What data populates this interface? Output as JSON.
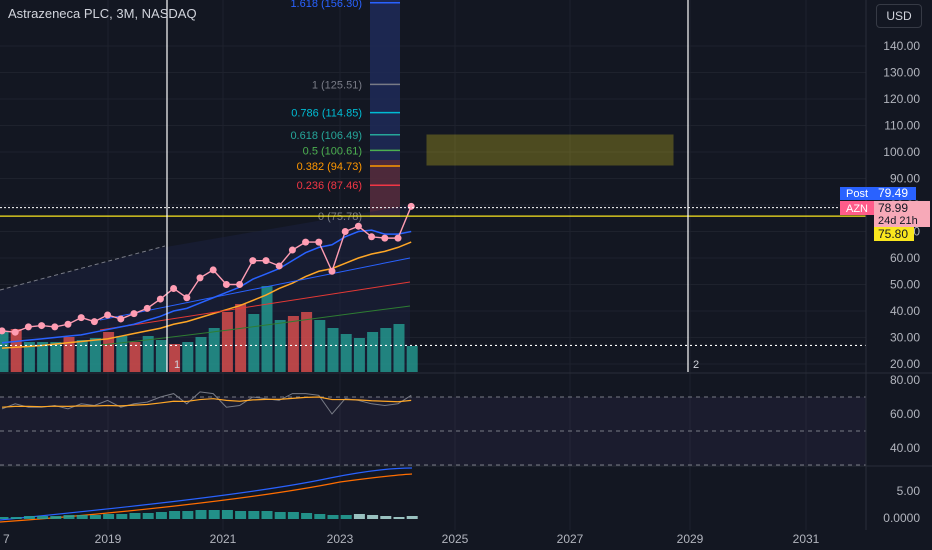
{
  "header": {
    "symbol_title": "Astrazeneca PLC, 3M, NASDAQ",
    "currency": "USD"
  },
  "colors": {
    "background": "#131722",
    "grid": "#1e222d",
    "axis_text": "#b2b5be",
    "up_volume": "#26a69a",
    "down_volume": "#ef5350",
    "price_line": "#ff9db3",
    "ma_orange": "#ffa726",
    "ma_blue": "#2962ff",
    "ma_red": "#e53935",
    "ma_green": "#2e7d32",
    "hline_yellow": "#f9e61e",
    "fib_blue": "#2962ff",
    "rsi_line": "#787b86",
    "rsi_signal": "#ffa726",
    "post_label": "#2962ff",
    "azn_label": "#f7a9b8",
    "yellow_label": "#f9e61e"
  },
  "chart_data": [
    {
      "type": "line",
      "name": "price",
      "x": [
        "2016-07",
        "2016-10",
        "2017-01",
        "2017-04",
        "2017-07",
        "2017-10",
        "2018-01",
        "2018-04",
        "2018-07",
        "2018-10",
        "2019-01",
        "2019-04",
        "2019-07",
        "2019-10",
        "2020-01",
        "2020-04",
        "2020-07",
        "2020-10",
        "2021-01",
        "2021-04",
        "2021-07",
        "2021-10",
        "2022-01",
        "2022-04",
        "2022-07",
        "2022-10",
        "2023-01",
        "2023-04",
        "2023-07",
        "2023-10",
        "2024-01",
        "2024-04"
      ],
      "series": [
        {
          "name": "price",
          "values": [
            32.5,
            32.0,
            34.0,
            34.5,
            34.0,
            35.0,
            37.5,
            36.0,
            38.5,
            37.0,
            39.0,
            41.0,
            44.5,
            48.5,
            45.0,
            52.5,
            55.5,
            50.0,
            50.0,
            59.0,
            59.0,
            57.0,
            63.0,
            66.0,
            66.0,
            55.0,
            70.0,
            72.0,
            68.0,
            67.5,
            67.5,
            79.5
          ]
        },
        {
          "name": "ma_blue",
          "values": [
            28,
            28.5,
            29,
            29.5,
            30,
            30.5,
            31,
            32,
            33,
            34,
            35,
            36.5,
            38,
            40,
            41,
            43,
            45,
            47,
            49,
            52,
            54,
            56,
            59,
            62,
            64,
            65,
            68,
            70,
            70.5,
            69,
            69,
            70
          ]
        },
        {
          "name": "ma_orange",
          "values": [
            26,
            26.3,
            26.6,
            27,
            27.5,
            28,
            28.5,
            29,
            29.5,
            30.5,
            31.5,
            32.5,
            33.5,
            35,
            36,
            37.5,
            39,
            40.5,
            42,
            44,
            46,
            48.5,
            50.5,
            53,
            55,
            56,
            58,
            60,
            61.5,
            62.5,
            64,
            66
          ]
        }
      ],
      "ylim": [
        17,
        150
      ],
      "yticks": [
        "140.00",
        "130.00",
        "120.00",
        "110.00",
        "100.00",
        "90.00",
        "80.00",
        "70.00",
        "60.00",
        "50.00",
        "40.00",
        "30.00",
        "20.00"
      ]
    },
    {
      "type": "bar",
      "name": "volume",
      "up_or_down": [
        "up",
        "down",
        "up",
        "up",
        "up",
        "down",
        "up",
        "up",
        "down",
        "up",
        "down",
        "up",
        "up",
        "down",
        "up",
        "up",
        "up",
        "down",
        "down",
        "up",
        "up",
        "up",
        "down",
        "down",
        "up",
        "up",
        "up",
        "up",
        "up",
        "up",
        "up",
        "up"
      ]
    },
    {
      "type": "line",
      "name": "rsi",
      "yticks": [
        "80.00",
        "60.00",
        "40.00"
      ],
      "values": [
        63,
        66,
        64,
        64,
        65,
        63,
        66,
        65,
        68,
        64,
        66,
        67,
        70,
        72,
        66,
        73,
        72,
        64,
        65,
        70,
        69,
        68,
        72,
        72,
        71,
        60,
        69,
        68,
        66,
        65,
        66,
        71
      ],
      "signal": [
        64,
        64.5,
        64.5,
        64.3,
        64.6,
        64.5,
        64.8,
        64.7,
        65,
        64.8,
        65.2,
        65.6,
        66.5,
        67.5,
        67.4,
        68.5,
        69,
        68,
        67.5,
        68.3,
        68.6,
        68.6,
        69.2,
        69.8,
        70,
        68.5,
        68.5,
        68.3,
        67.8,
        67.5,
        67.2,
        68
      ]
    },
    {
      "type": "bar",
      "name": "macd",
      "yticks": [
        "5.00",
        "0.0000"
      ]
    }
  ],
  "fib_levels": [
    {
      "label": "1.618 (156.30)",
      "value": 156.3,
      "color": "#2962ff"
    },
    {
      "label": "1 (125.51)",
      "value": 125.51,
      "color": "#787b86"
    },
    {
      "label": "0.786 (114.85)",
      "value": 114.85,
      "color": "#00bcd4"
    },
    {
      "label": "0.618 (106.49)",
      "value": 106.49,
      "color": "#26a69a"
    },
    {
      "label": "0.5 (100.61)",
      "value": 100.61,
      "color": "#4caf50"
    },
    {
      "label": "0.382 (94.73)",
      "value": 94.73,
      "color": "#ff9800"
    },
    {
      "label": "0.236 (87.46)",
      "value": 87.46,
      "color": "#f23645"
    },
    {
      "label": "0 (75.78)",
      "value": 75.78,
      "color": "#787b86"
    }
  ],
  "price_labels": {
    "post_tag": "Post",
    "post_value": "79.49",
    "azn_tag": "AZN",
    "azn_value": "78.99",
    "countdown": "24d 21h",
    "hline_value": "75.80"
  },
  "vertical_markers": [
    "1",
    "2"
  ],
  "x_axis_labels": [
    "7",
    "2019",
    "2021",
    "2023",
    "2025",
    "2027",
    "2029",
    "2031"
  ]
}
